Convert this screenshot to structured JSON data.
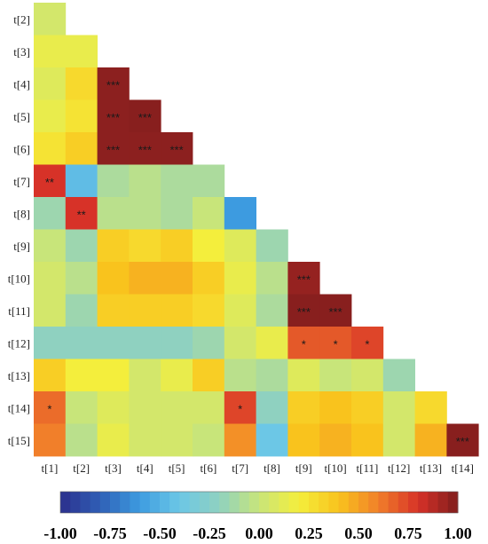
{
  "chart_data": {
    "type": "heatmap",
    "shape": "lower-triangle",
    "x_labels": [
      "t[1]",
      "t[2]",
      "t[3]",
      "t[4]",
      "t[5]",
      "t[6]",
      "t[7]",
      "t[8]",
      "t[9]",
      "t[10]",
      "t[11]",
      "t[12]",
      "t[13]",
      "t[14]"
    ],
    "y_labels": [
      "t[2]",
      "t[3]",
      "t[4]",
      "t[5]",
      "t[6]",
      "t[7]",
      "t[8]",
      "t[9]",
      "t[10]",
      "t[11]",
      "t[12]",
      "t[13]",
      "t[14]",
      "t[15]"
    ],
    "values": [
      [
        0.05
      ],
      [
        0.15,
        0.15
      ],
      [
        0.1,
        0.3,
        0.97
      ],
      [
        0.15,
        0.25,
        0.97,
        0.98
      ],
      [
        0.25,
        0.35,
        0.97,
        0.97,
        0.97
      ],
      [
        0.8,
        -0.45,
        -0.1,
        -0.05,
        -0.1,
        -0.1
      ],
      [
        -0.15,
        0.8,
        -0.05,
        -0.05,
        -0.1,
        0.0,
        -0.6
      ],
      [
        0.0,
        -0.15,
        0.35,
        0.3,
        0.35,
        0.2,
        0.1,
        -0.15
      ],
      [
        0.05,
        -0.05,
        0.4,
        0.45,
        0.45,
        0.35,
        0.15,
        -0.05,
        0.95
      ],
      [
        0.05,
        -0.15,
        0.35,
        0.35,
        0.35,
        0.3,
        0.1,
        -0.1,
        0.98,
        0.98
      ],
      [
        -0.2,
        -0.2,
        -0.2,
        -0.2,
        -0.2,
        -0.15,
        0.05,
        0.15,
        0.7,
        0.7,
        0.75
      ],
      [
        0.35,
        0.2,
        0.2,
        0.05,
        0.15,
        0.35,
        -0.05,
        -0.1,
        0.1,
        0.0,
        0.05,
        -0.15
      ],
      [
        0.65,
        0.0,
        0.1,
        0.05,
        0.05,
        0.05,
        0.75,
        -0.2,
        0.35,
        0.4,
        0.35,
        0.05,
        0.3
      ],
      [
        0.6,
        -0.05,
        0.15,
        0.05,
        0.05,
        0.0,
        0.55,
        -0.4,
        0.4,
        0.45,
        0.4,
        0.05,
        0.45,
        0.98
      ]
    ],
    "significance": [
      [
        ""
      ],
      [
        "",
        ""
      ],
      [
        "",
        "",
        "***"
      ],
      [
        "",
        "",
        "***",
        "***"
      ],
      [
        "",
        "",
        "***",
        "***",
        "***"
      ],
      [
        "**",
        "",
        "",
        "",
        "",
        ""
      ],
      [
        "",
        "**",
        "",
        "",
        "",
        "",
        ""
      ],
      [
        "",
        "",
        "",
        "",
        "",
        "",
        "",
        ""
      ],
      [
        "",
        "",
        "",
        "",
        "",
        "",
        "",
        "",
        "***"
      ],
      [
        "",
        "",
        "",
        "",
        "",
        "",
        "",
        "",
        "***",
        "***"
      ],
      [
        "",
        "",
        "",
        "",
        "",
        "",
        "",
        "",
        "*",
        "*",
        "*"
      ],
      [
        "",
        "",
        "",
        "",
        "",
        "",
        "",
        "",
        "",
        "",
        "",
        ""
      ],
      [
        "*",
        "",
        "",
        "",
        "",
        "",
        "*",
        "",
        "",
        "",
        "",
        "",
        ""
      ],
      [
        "",
        "",
        "",
        "",
        "",
        "",
        "",
        "",
        "",
        "",
        "",
        "",
        "",
        "***"
      ]
    ],
    "colorbar": {
      "range": [
        -1.0,
        1.0
      ],
      "ticks": [
        "-1.00",
        "-0.75",
        "-0.50",
        "-0.25",
        "0.00",
        "0.25",
        "0.50",
        "0.75",
        "1.00"
      ],
      "position": "bottom"
    }
  },
  "colors": {
    "scale": [
      "#2b2f8c",
      "#2f5fb6",
      "#3d9be0",
      "#6cc7e6",
      "#8fd1c0",
      "#c8e57a",
      "#f4ee3c",
      "#f9c31d",
      "#f17f2a",
      "#d73228",
      "#7f1d1d"
    ]
  }
}
